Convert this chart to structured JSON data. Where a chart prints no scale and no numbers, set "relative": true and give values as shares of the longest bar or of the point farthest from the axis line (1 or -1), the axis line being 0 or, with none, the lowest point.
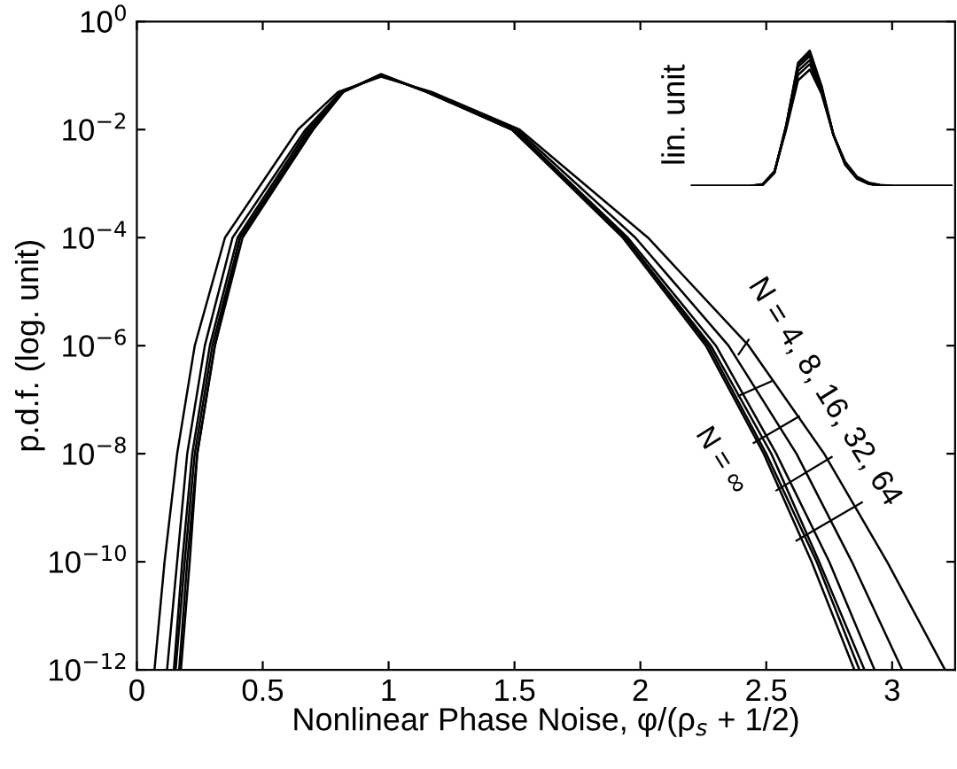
{
  "chart_data": [
    {
      "type": "line",
      "xlabel": "Nonlinear Phase Noise, φ/(ρ$_{s}$ + 1/2)",
      "ylabel": "p.d.f. (log. unit)",
      "log": "y",
      "xlim": [
        0,
        3.25
      ],
      "xticks": [
        0,
        0.5,
        1,
        1.5,
        2,
        2.5,
        3
      ],
      "ylim": [
        1e-12,
        1
      ],
      "yticks": [
        {
          "value": 1e-12,
          "label": "10$^{−12}$"
        },
        {
          "value": 1e-10,
          "label": "10$^{−10}$"
        },
        {
          "value": 1e-08,
          "label": "10$^{−8}$"
        },
        {
          "value": 1e-06,
          "label": "10$^{−6}$"
        },
        {
          "value": 0.0001,
          "label": "10$^{−4}$"
        },
        {
          "value": 0.01,
          "label": "10$^{−2}$"
        },
        {
          "value": 1,
          "label": "10$^{0}$"
        }
      ],
      "grid": false,
      "legend": false,
      "marker": "none",
      "line_style": "solid",
      "annotations": [
        "N = 4, 8, 16, 32, 64",
        "N = ∞"
      ],
      "series": [
        {
          "color": "#000000",
          "x": [
            0.07,
            0.11,
            0.16,
            0.23,
            0.35,
            0.64,
            0.8,
            0.97,
            1.17,
            1.52,
            2.03,
            2.43,
            2.73,
            2.98,
            3.21
          ],
          "values": [
            1e-12,
            1e-10,
            1e-08,
            1e-06,
            0.0001,
            0.01,
            0.05,
            0.095,
            0.05,
            0.01,
            0.0001,
            1e-06,
            1e-08,
            1e-10,
            1e-12
          ]
        },
        {
          "color": "#000000",
          "x": [
            0.12,
            0.16,
            0.2,
            0.27,
            0.38,
            0.67,
            0.81,
            0.97,
            1.16,
            1.51,
            1.98,
            2.35,
            2.62,
            2.84,
            3.04
          ],
          "values": [
            1e-12,
            1e-10,
            1e-08,
            1e-06,
            0.0001,
            0.01,
            0.05,
            0.1,
            0.05,
            0.01,
            0.0001,
            1e-06,
            1e-08,
            1e-10,
            1e-12
          ]
        },
        {
          "color": "#000000",
          "x": [
            0.147,
            0.18,
            0.22,
            0.29,
            0.4,
            0.68,
            0.82,
            0.97,
            1.15,
            1.5,
            1.95,
            2.3,
            2.54,
            2.75,
            2.93
          ],
          "values": [
            1e-12,
            1e-10,
            1e-08,
            1e-06,
            0.0001,
            0.01,
            0.05,
            0.102,
            0.05,
            0.01,
            0.0001,
            1e-06,
            1e-08,
            1e-10,
            1e-12
          ]
        },
        {
          "color": "#000000",
          "x": [
            0.154,
            0.19,
            0.23,
            0.3,
            0.41,
            0.69,
            0.82,
            0.97,
            1.15,
            1.49,
            1.94,
            2.28,
            2.52,
            2.71,
            2.89
          ],
          "values": [
            1e-12,
            1e-10,
            1e-08,
            1e-06,
            0.0001,
            0.01,
            0.05,
            0.104,
            0.05,
            0.01,
            0.0001,
            1e-06,
            1e-08,
            1e-10,
            1e-12
          ]
        },
        {
          "color": "#000000",
          "x": [
            0.168,
            0.2,
            0.24,
            0.31,
            0.41,
            0.7,
            0.82,
            0.97,
            1.15,
            1.49,
            1.94,
            2.27,
            2.5,
            2.7,
            2.87
          ],
          "values": [
            1e-12,
            1e-10,
            1e-08,
            1e-06,
            0.0001,
            0.01,
            0.05,
            0.105,
            0.05,
            0.01,
            0.0001,
            1e-06,
            1e-08,
            1e-10,
            1e-12
          ]
        },
        {
          "color": "#000000",
          "x": [
            0.175,
            0.21,
            0.24,
            0.31,
            0.42,
            0.7,
            0.82,
            0.97,
            1.15,
            1.49,
            1.93,
            2.26,
            2.49,
            2.68,
            2.85
          ],
          "values": [
            1e-12,
            1e-10,
            1e-08,
            1e-06,
            0.0001,
            0.01,
            0.05,
            0.106,
            0.05,
            0.01,
            0.0001,
            1e-06,
            1e-08,
            1e-10,
            1e-12
          ]
        }
      ]
    },
    {
      "type": "line",
      "relative": true,
      "ylabel": "lin. unit",
      "tick_labels": false,
      "grid": false,
      "legend": false,
      "marker": "none",
      "line_style": "solid",
      "categories": [
        null,
        null,
        null,
        null,
        null,
        null,
        null,
        null,
        null,
        null,
        null,
        null,
        null,
        null,
        null,
        null,
        null,
        null,
        null,
        null,
        null,
        null,
        null
      ],
      "series": [
        {
          "color": "#000000",
          "values": [
            0,
            0,
            0,
            0,
            0,
            0.002,
            0.015,
            0.11,
            0.42,
            0.78,
            0.86,
            0.68,
            0.38,
            0.18,
            0.07,
            0.025,
            0.008,
            0.002,
            0,
            0,
            0,
            0,
            0
          ]
        },
        {
          "color": "#000000",
          "values": [
            0,
            0,
            0,
            0,
            0,
            0.002,
            0.013,
            0.11,
            0.43,
            0.82,
            0.9,
            0.7,
            0.38,
            0.17,
            0.065,
            0.022,
            0.006,
            0.001,
            0,
            0,
            0,
            0,
            0
          ]
        },
        {
          "color": "#000000",
          "values": [
            0,
            0,
            0,
            0,
            0,
            0.001,
            0.012,
            0.1,
            0.44,
            0.85,
            0.93,
            0.71,
            0.38,
            0.17,
            0.06,
            0.02,
            0.005,
            0.001,
            0,
            0,
            0,
            0,
            0
          ]
        },
        {
          "color": "#000000",
          "values": [
            0,
            0,
            0,
            0,
            0,
            0.001,
            0.011,
            0.1,
            0.45,
            0.88,
            0.96,
            0.72,
            0.38,
            0.16,
            0.058,
            0.018,
            0.004,
            0.001,
            0,
            0,
            0,
            0,
            0
          ]
        },
        {
          "color": "#000000",
          "values": [
            0,
            0,
            0,
            0,
            0,
            0.001,
            0.01,
            0.1,
            0.45,
            0.9,
            0.98,
            0.73,
            0.38,
            0.16,
            0.056,
            0.017,
            0.004,
            0,
            0,
            0,
            0,
            0,
            0
          ]
        },
        {
          "color": "#000000",
          "values": [
            0,
            0,
            0,
            0,
            0,
            0.001,
            0.01,
            0.1,
            0.45,
            0.91,
            1,
            0.74,
            0.38,
            0.16,
            0.055,
            0.016,
            0.003,
            0,
            0,
            0,
            0,
            0,
            0
          ]
        }
      ]
    }
  ]
}
